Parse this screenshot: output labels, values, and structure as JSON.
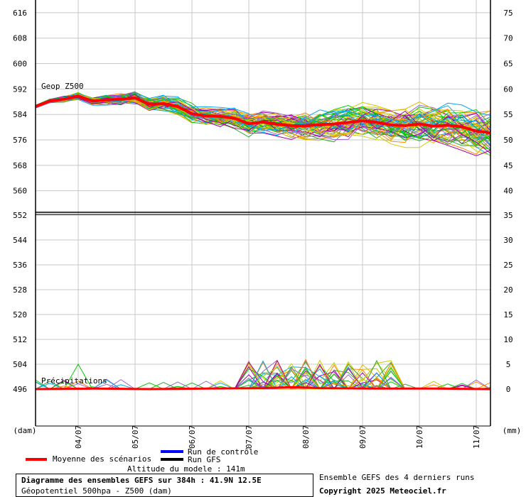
{
  "chart_data": {
    "type": "line",
    "left_axis_unit": "(dam)",
    "right_axis_unit": "(mm)",
    "top_panel": {
      "label": "Geop Z500",
      "y_ticks_left": [
        616,
        608,
        600,
        592,
        584,
        576,
        568,
        560
      ],
      "y_ticks_right": [
        75,
        70,
        65,
        60,
        55,
        50,
        45,
        40
      ],
      "ylim": [
        553,
        620
      ]
    },
    "bottom_panel": {
      "label": "Précipitations",
      "y_ticks_left": [
        552,
        544,
        536,
        528,
        520,
        512,
        504,
        496
      ],
      "y_ticks_right": [
        35,
        30,
        25,
        20,
        15,
        10,
        5,
        0
      ],
      "ylim_mm": [
        -7.5,
        35
      ]
    },
    "x_labels": [
      "04/07",
      "05/07",
      "06/07",
      "07/07",
      "08/07",
      "09/07",
      "10/07",
      "11/07"
    ],
    "mean_z500": {
      "name": "Moyenne des scénarios",
      "x": [
        0,
        0.25,
        0.5,
        0.75,
        1.0,
        1.25,
        1.5,
        1.75,
        2.0,
        2.25,
        2.5,
        2.75,
        3.0,
        3.25,
        3.5,
        3.75,
        4.0,
        4.25,
        4.5,
        4.75,
        5.0,
        5.25,
        5.5,
        5.75,
        6.0,
        6.25,
        6.5,
        6.75,
        7.0,
        7.25,
        7.5,
        7.75,
        8.0
      ],
      "values": [
        586.5,
        588.2,
        588.8,
        589.8,
        588.2,
        588.6,
        588.8,
        589.2,
        587.2,
        587.4,
        586.5,
        584.2,
        583.5,
        583.4,
        582.8,
        581.1,
        581.6,
        580.9,
        580.5,
        580.4,
        580.8,
        581.0,
        581.5,
        582.0,
        581.5,
        580.7,
        580.5,
        581.0,
        580.3,
        580.6,
        580.1,
        578.8,
        578.2
      ]
    },
    "mean_precip": {
      "x": [
        0,
        1,
        2,
        3,
        4,
        4.5,
        5,
        6,
        7,
        8
      ],
      "values": [
        0,
        0.1,
        0,
        0.1,
        0.2,
        0.4,
        0.2,
        0.1,
        0.1,
        0
      ]
    },
    "colors": {
      "mean": "#ff0000",
      "control": "#0000ff",
      "gfs": "#000000",
      "members": [
        "#00cc00",
        "#ddbb00",
        "#aa00aa",
        "#00aaee",
        "#ff8800",
        "#33aa33",
        "#9966cc",
        "#cccc00"
      ]
    }
  },
  "legend": {
    "mean_label": "Moyenne des scénarios",
    "control_label": "Run de contrôle",
    "gfs_label": "Run GFS",
    "altitude": "Altitude du modele : 141m"
  },
  "info": {
    "title": "Diagramme des ensembles GEFS sur 384h : 41.9N 12.5E",
    "subtitle": "Géopotentiel 500hpa - Z500 (dam)",
    "runs_note": "Ensemble GEFS des 4 derniers runs",
    "copyright": "Copyright 2025 Meteociel.fr"
  }
}
